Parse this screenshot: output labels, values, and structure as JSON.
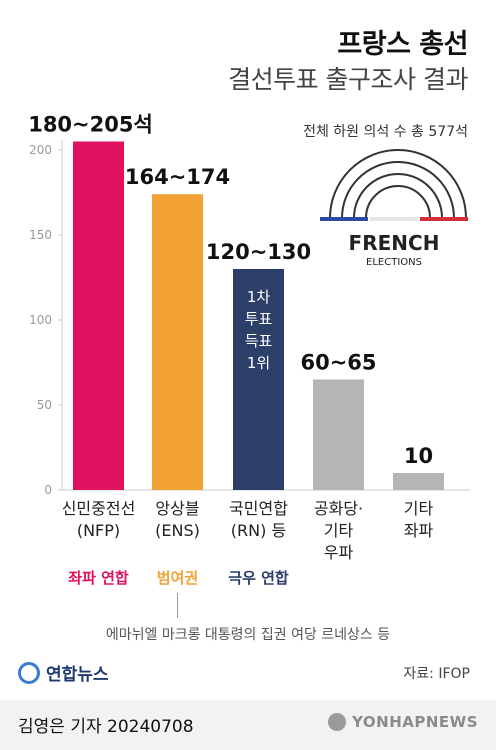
{
  "header": {
    "title": "프랑스 총선",
    "subtitle": "결선투표 출구조사 결과",
    "total_seats": "전체 하원 의석 수 총 577석"
  },
  "colors": {
    "nfp": "#e0115f",
    "ens": "#f3a236",
    "rn": "#2c3f69",
    "other_right": "#b5b5b5",
    "other_left": "#b5b5b5",
    "axis": "#cccccc"
  },
  "chart_data": {
    "type": "bar",
    "ylim": [
      0,
      210
    ],
    "yticks": [
      0,
      50,
      100,
      150,
      200
    ],
    "categories": [
      "신민중전선 (NFP)",
      "앙상블 (ENS)",
      "국민연합 (RN)",
      "공화당·기타 우파",
      "기타 좌파"
    ],
    "category_lines": [
      [
        "신민중전선",
        "(NFP)"
      ],
      [
        "앙상블",
        "(ENS)"
      ],
      [
        "국민연합",
        "(RN) 등"
      ],
      [
        "공화당·",
        "기타",
        "우파"
      ],
      [
        "기타",
        "좌파"
      ]
    ],
    "ranges": [
      [
        180,
        205
      ],
      [
        164,
        174
      ],
      [
        120,
        130
      ],
      [
        60,
        65
      ],
      [
        10,
        10
      ]
    ],
    "labels": [
      "180~205석",
      "164~174",
      "120~130",
      "60~65",
      "10"
    ],
    "groups": [
      "좌파 연합",
      "범여권",
      "극우 연합",
      "",
      ""
    ],
    "rn_annotation": [
      "1차",
      "투표",
      "득표",
      "1위"
    ]
  },
  "logo_text": {
    "french": "FRENCH",
    "elections": "ELECTIONS"
  },
  "note": "에마뉘엘 마크롱 대통령의 집권 여당 르네상스 등",
  "source": "자료: IFOP",
  "brand": "연합뉴스",
  "credit": "김영은 기자  20240708",
  "watermark": "YONHAPNEWS"
}
